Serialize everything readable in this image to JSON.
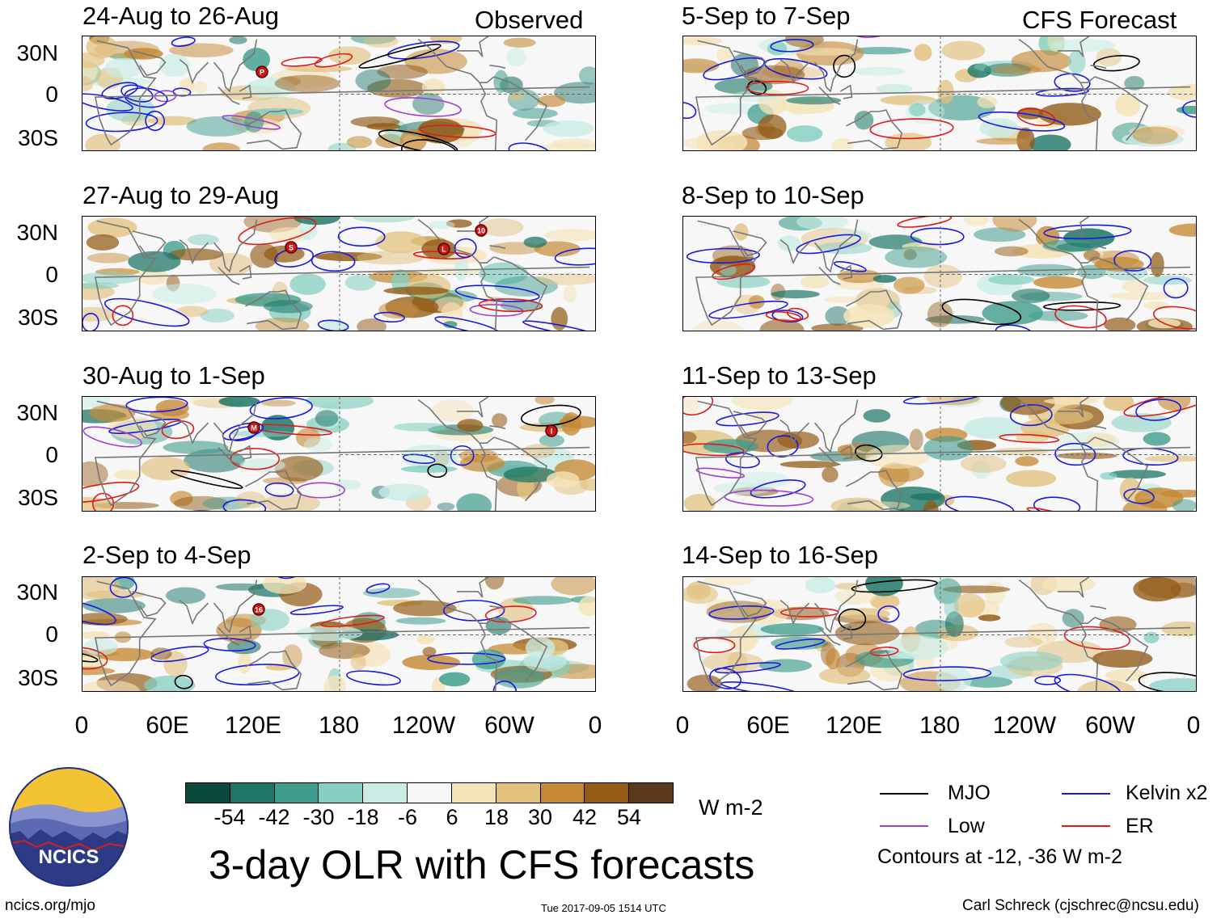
{
  "title": "3-day OLR with CFS forecasts",
  "column_headers": {
    "left": "Observed",
    "right": "CFS Forecast"
  },
  "panels": {
    "left": [
      "24-Aug to 26-Aug",
      "27-Aug to 29-Aug",
      "30-Aug to 1-Sep",
      "2-Sep to 4-Sep"
    ],
    "right": [
      "5-Sep to 7-Sep",
      "8-Sep to 10-Sep",
      "11-Sep to 13-Sep",
      "14-Sep to 16-Sep"
    ]
  },
  "lat_labels": [
    "30N",
    "0",
    "30S"
  ],
  "lon_labels": [
    "0",
    "60E",
    "120E",
    "180",
    "120W",
    "60W",
    "0"
  ],
  "colorbar": {
    "colors": [
      "#0b4a3a",
      "#1c7566",
      "#3f9c8c",
      "#84cfc0",
      "#c9ece5",
      "#f7f7f7",
      "#f5e3b8",
      "#e1c07d",
      "#c58935",
      "#925a14",
      "#5a3a1a"
    ],
    "labels": [
      "-54",
      "-42",
      "-30",
      "-18",
      "-6",
      "6",
      "18",
      "30",
      "42",
      "54"
    ],
    "units": "W m-2"
  },
  "legend": {
    "mjo": "MJO",
    "kelvin": "Kelvin x2",
    "low": "Low",
    "er": "ER",
    "mjo_color": "#000000",
    "kelvin_color": "#1a1adc",
    "low_color": "#a040d0",
    "er_color": "#e01a1a",
    "note": "Contours at -12, -36 W m-2"
  },
  "logo": {
    "text": "NCICS"
  },
  "footer": {
    "url": "ncics.org/mjo",
    "timestamp": "Tue 2017-09-05 1514 UTC",
    "credit": "Carl Schreck (cjschrec@ncsu.edu)"
  },
  "storm_markers": [
    {
      "panel": 0,
      "label": "P"
    },
    {
      "panel": 1,
      "label": "S"
    },
    {
      "panel": 1,
      "label": "L"
    },
    {
      "panel": 1,
      "label": "10"
    },
    {
      "panel": 2,
      "label": "M"
    },
    {
      "panel": 2,
      "label": "I"
    },
    {
      "panel": 3,
      "label": "16"
    }
  ]
}
